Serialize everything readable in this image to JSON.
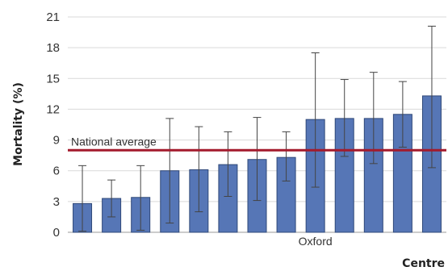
{
  "chart_data": {
    "type": "bar",
    "title": "",
    "xlabel": "Centre",
    "ylabel": "Mortality (%)",
    "ylim": [
      0,
      21
    ],
    "yticks": [
      "0",
      "3",
      "6",
      "9",
      "12",
      "15",
      "18",
      "21"
    ],
    "grid": true,
    "values": [
      2.8,
      3.3,
      3.4,
      6.0,
      6.1,
      6.6,
      7.1,
      7.3,
      11.0,
      11.1,
      11.1,
      11.5,
      13.3
    ],
    "error_low": [
      0.1,
      1.5,
      0.2,
      0.9,
      2.0,
      3.5,
      3.1,
      5.0,
      4.4,
      7.4,
      6.7,
      8.3,
      6.3
    ],
    "error_high": [
      6.5,
      5.1,
      6.5,
      11.1,
      10.3,
      9.8,
      11.2,
      9.8,
      17.5,
      14.9,
      15.6,
      14.7,
      20.1
    ],
    "highlight": {
      "label": "Oxford",
      "index": 8
    },
    "reference_line": {
      "label": "National average",
      "value": 8.0
    },
    "colors": {
      "bar": "#5676b6",
      "bar_stroke": "#2f4878",
      "reference": "#a31a2c",
      "grid": "#d9d9d9"
    }
  }
}
